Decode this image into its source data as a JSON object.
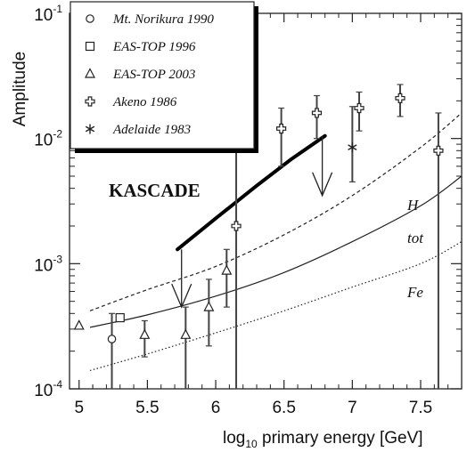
{
  "chart_data": {
    "type": "scatter",
    "xlabel_main": "log",
    "xlabel_sub": "10",
    "xlabel_rest": " primary energy [GeV]",
    "ylabel": "Amplitude",
    "xlim": [
      4.93,
      7.8
    ],
    "ylim_log10": [
      -4,
      -1
    ],
    "yscale": "log",
    "x_ticks": [
      "5",
      "5.5",
      "6",
      "6.5",
      "7",
      "7.5"
    ],
    "x_tick_values": [
      5,
      5.5,
      6,
      6.5,
      7,
      7.5
    ],
    "y_ticks": [
      {
        "base": "10",
        "exp": "-4",
        "log10": -4
      },
      {
        "base": "10",
        "exp": "-3",
        "log10": -3
      },
      {
        "base": "10",
        "exp": "-2",
        "log10": -2
      },
      {
        "base": "10",
        "exp": "-1",
        "log10": -1
      }
    ],
    "grid": false,
    "legend_position": "top-left",
    "series": [
      {
        "name": "Mt. Norikura 1990",
        "marker": "circle",
        "points": [
          {
            "x": 5.24,
            "y": 0.00025,
            "ylo": 0.0001,
            "yhi": 0.0004
          }
        ]
      },
      {
        "name": "EAS-TOP 1996",
        "marker": "square",
        "points": [
          {
            "x": 5.3,
            "y": 0.00037
          }
        ]
      },
      {
        "name": "EAS-TOP 2003",
        "marker": "triangle",
        "points": [
          {
            "x": 5.0,
            "y": 0.00032
          },
          {
            "x": 5.48,
            "y": 0.00027,
            "ylo": 0.00018,
            "yhi": 0.00035
          },
          {
            "x": 5.78,
            "y": 0.00027,
            "ylo": 0.0001,
            "yhi": 0.00045
          },
          {
            "x": 5.95,
            "y": 0.00045,
            "ylo": 0.00022,
            "yhi": 0.00075
          },
          {
            "x": 6.08,
            "y": 0.00088,
            "ylo": 0.00045,
            "yhi": 0.0013
          }
        ]
      },
      {
        "name": "Akeno 1986",
        "marker": "cross",
        "points": [
          {
            "x": 6.15,
            "y": 0.002,
            "ylo": 0.0001,
            "yhi": 0.009
          },
          {
            "x": 6.48,
            "y": 0.012,
            "ylo": 0.006,
            "yhi": 0.0175
          },
          {
            "x": 6.74,
            "y": 0.016,
            "ylo": 0.01,
            "yhi": 0.022
          },
          {
            "x": 7.05,
            "y": 0.0175,
            "ylo": 0.0115,
            "yhi": 0.0235
          },
          {
            "x": 7.35,
            "y": 0.021,
            "ylo": 0.015,
            "yhi": 0.027
          },
          {
            "x": 7.63,
            "y": 0.008,
            "ylo": 0.0001,
            "yhi": 0.016
          }
        ]
      },
      {
        "name": "Adelaide 1983",
        "marker": "star",
        "points": [
          {
            "x": 7.0,
            "y": 0.0085,
            "ylo": 0.0045,
            "yhi": 0.018
          }
        ]
      }
    ],
    "curves": [
      {
        "label": "H",
        "style": "dashed",
        "x": [
          5.08,
          5.5,
          6.0,
          6.5,
          7.0,
          7.5,
          7.8
        ],
        "y": [
          0.00042,
          0.00062,
          0.00095,
          0.0017,
          0.0035,
          0.0085,
          0.016
        ]
      },
      {
        "label": "tot",
        "style": "solid",
        "x": [
          5.08,
          5.5,
          6.0,
          6.5,
          7.0,
          7.5,
          7.8
        ],
        "y": [
          0.00031,
          0.00039,
          0.00055,
          0.00085,
          0.0015,
          0.0029,
          0.005
        ]
      },
      {
        "label": "Fe",
        "style": "dotted",
        "x": [
          5.08,
          5.5,
          6.0,
          6.5,
          7.0,
          7.5,
          7.8
        ],
        "y": [
          0.00014,
          0.00019,
          0.00028,
          0.00042,
          0.00065,
          0.001,
          0.0015
        ]
      }
    ],
    "kascade": {
      "label": "KASCADE",
      "line_x": [
        5.72,
        6.0,
        6.3,
        6.55,
        6.8
      ],
      "line_y": [
        0.0013,
        0.0023,
        0.0042,
        0.0068,
        0.0105
      ],
      "upper_limits": [
        {
          "x": 5.75,
          "y": 0.0013,
          "y_tip": 0.00045
        },
        {
          "x": 6.78,
          "y": 0.0105,
          "y_tip": 0.0035
        }
      ]
    }
  }
}
